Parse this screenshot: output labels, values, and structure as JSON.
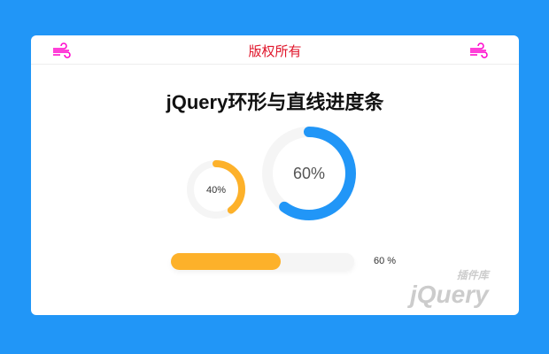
{
  "header": {
    "title": "版权所有",
    "left_icon": "wind-icon",
    "right_icon": "wind-icon",
    "icon_color": "#ff00cc"
  },
  "heading": "jQuery环形与直线进度条",
  "rings": [
    {
      "label": "40%",
      "value": 40,
      "color": "#fdb12a"
    },
    {
      "label": "60%",
      "value": 60,
      "color": "#2196f7"
    }
  ],
  "linear": {
    "value": 60,
    "label": "60 %",
    "color": "#fdb12a"
  },
  "watermark": {
    "text": "jQuery",
    "sub": "插件库"
  }
}
